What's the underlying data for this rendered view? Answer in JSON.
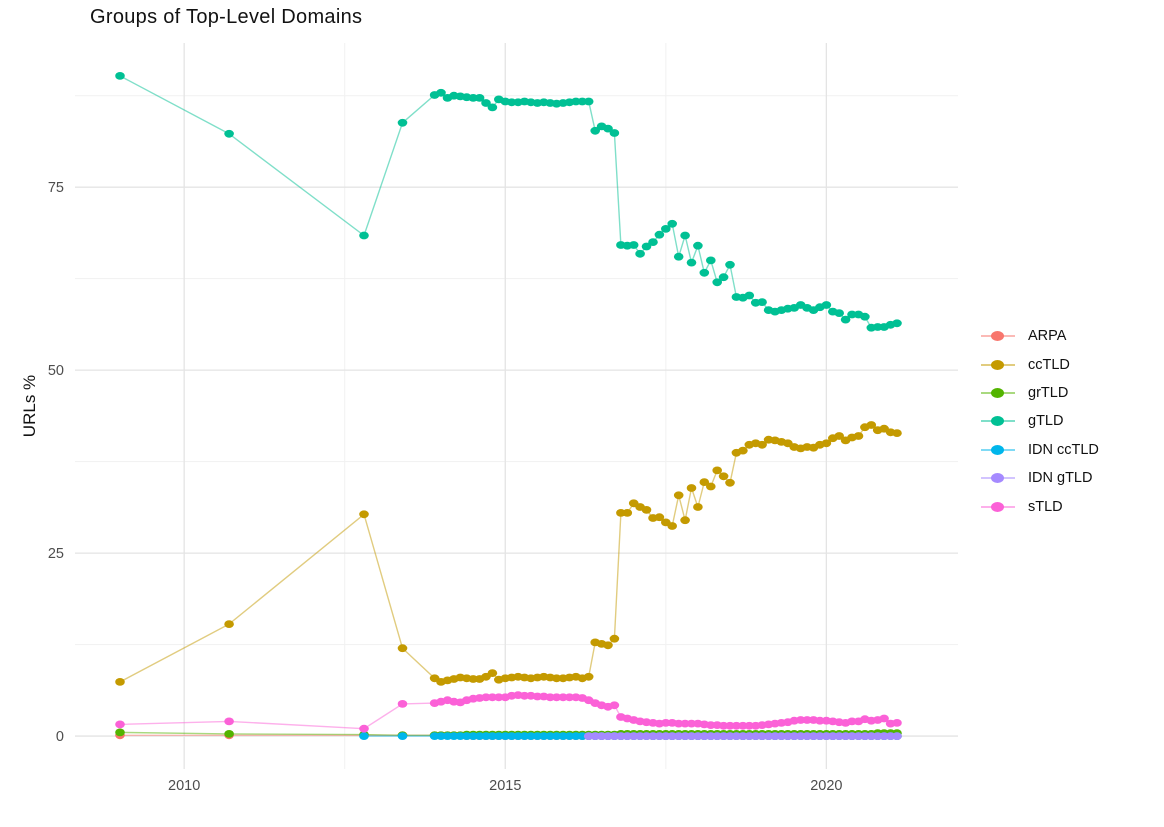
{
  "chart_data": {
    "type": "line",
    "title": "Groups of Top-Level Domains",
    "ylabel": "URLs %",
    "xlabel": "",
    "grid": "major+minor",
    "legend_position": "right",
    "xlim": [
      2008.3,
      2022.05
    ],
    "ylim": [
      -4.5,
      94.7
    ],
    "x_major_ticks": [
      2010,
      2015,
      2020
    ],
    "x_tick_labels": [
      "2010",
      "2015",
      "2020"
    ],
    "x_minor_ticks": [
      2012.5,
      2017.5
    ],
    "y_major_ticks": [
      0,
      25,
      50,
      75
    ],
    "y_tick_labels": [
      "0",
      "25",
      "50",
      "75"
    ],
    "y_minor_ticks": [
      12.5,
      37.5,
      62.5,
      87.5
    ],
    "major_grid_color": "#e4e4e4",
    "minor_grid_color": "#f1f1f1",
    "x": [
      2009.0,
      2010.7,
      2012.8,
      2013.4,
      2013.9,
      2014.0,
      2014.1,
      2014.2,
      2014.3,
      2014.4,
      2014.5,
      2014.6,
      2014.7,
      2014.8,
      2014.9,
      2015.0,
      2015.1,
      2015.2,
      2015.3,
      2015.4,
      2015.5,
      2015.6,
      2015.7,
      2015.8,
      2015.9,
      2016.0,
      2016.1,
      2016.2,
      2016.3,
      2016.4,
      2016.5,
      2016.6,
      2016.7,
      2016.8,
      2016.9,
      2017.0,
      2017.1,
      2017.2,
      2017.3,
      2017.4,
      2017.5,
      2017.6,
      2017.7,
      2017.8,
      2017.9,
      2018.0,
      2018.1,
      2018.2,
      2018.3,
      2018.4,
      2018.5,
      2018.6,
      2018.7,
      2018.8,
      2018.9,
      2019.0,
      2019.1,
      2019.2,
      2019.3,
      2019.4,
      2019.5,
      2019.6,
      2019.7,
      2019.8,
      2019.9,
      2020.0,
      2020.1,
      2020.2,
      2020.3,
      2020.4,
      2020.5,
      2020.6,
      2020.7,
      2020.8,
      2020.9,
      2021.0,
      2021.1
    ],
    "series": [
      {
        "name": "ARPA",
        "color": "#F8766D",
        "y": [
          0.1,
          0.1,
          0.1,
          0.1,
          0.1,
          0.1,
          0.1,
          0.1,
          0.1,
          0.0,
          0.0,
          0.0,
          0.0,
          0.0,
          0.0,
          0.0,
          0.0,
          0.0,
          0.0,
          0.0,
          0.0,
          0.0,
          0.0,
          0.0,
          0.0,
          0.0,
          0.0,
          0.0,
          0.0,
          0.0,
          0.0,
          0.0,
          0.0,
          0.0,
          0.0,
          0.0,
          0.0,
          0.0,
          0.0,
          0.0,
          0.0,
          0.0,
          0.0,
          0.0,
          0.0,
          0.0,
          0.0,
          0.0,
          0.0,
          0.0,
          0.0,
          0.0,
          0.0,
          0.0,
          0.0,
          0.0,
          0.0,
          0.0,
          0.0,
          0.0,
          0.0,
          0.0,
          0.0,
          0.0,
          0.0,
          0.0,
          0.0,
          0.0,
          0.0,
          0.0,
          0.0,
          0.0,
          0.0,
          0.0,
          0.0,
          0.0,
          0.0
        ]
      },
      {
        "name": "ccTLD",
        "color": "#C49A00",
        "y": [
          7.4,
          15.3,
          30.3,
          12.0,
          7.9,
          7.4,
          7.6,
          7.8,
          8.0,
          7.9,
          7.8,
          7.8,
          8.1,
          8.6,
          7.7,
          7.9,
          8.0,
          8.1,
          8.0,
          7.9,
          8.0,
          8.1,
          8.0,
          7.9,
          7.9,
          8.0,
          8.1,
          7.9,
          8.1,
          12.8,
          12.6,
          12.4,
          13.3,
          30.5,
          30.5,
          31.8,
          31.3,
          30.9,
          29.8,
          29.9,
          29.2,
          28.7,
          32.9,
          29.5,
          33.9,
          31.3,
          34.7,
          34.1,
          36.3,
          35.5,
          34.6,
          38.7,
          39.0,
          39.8,
          40.0,
          39.8,
          40.5,
          40.4,
          40.2,
          40.0,
          39.5,
          39.3,
          39.5,
          39.4,
          39.8,
          40.0,
          40.7,
          41.0,
          40.4,
          40.8,
          41.0,
          42.2,
          42.5,
          41.8,
          42.0,
          41.5,
          41.4
        ]
      },
      {
        "name": "grTLD",
        "color": "#53B400",
        "y": [
          0.5,
          0.3,
          0.2,
          0.1,
          0.1,
          0.1,
          0.1,
          0.1,
          0.1,
          0.2,
          0.2,
          0.2,
          0.2,
          0.2,
          0.2,
          0.2,
          0.2,
          0.2,
          0.2,
          0.2,
          0.2,
          0.2,
          0.2,
          0.2,
          0.2,
          0.2,
          0.2,
          0.2,
          0.2,
          0.2,
          0.2,
          0.2,
          0.2,
          0.3,
          0.3,
          0.3,
          0.3,
          0.3,
          0.3,
          0.3,
          0.3,
          0.3,
          0.3,
          0.3,
          0.3,
          0.3,
          0.3,
          0.3,
          0.3,
          0.3,
          0.3,
          0.3,
          0.3,
          0.3,
          0.3,
          0.3,
          0.3,
          0.3,
          0.3,
          0.3,
          0.3,
          0.3,
          0.3,
          0.3,
          0.3,
          0.3,
          0.3,
          0.3,
          0.3,
          0.3,
          0.3,
          0.3,
          0.3,
          0.4,
          0.4,
          0.4,
          0.4
        ]
      },
      {
        "name": "gTLD",
        "color": "#00C094",
        "y": [
          90.2,
          82.3,
          68.4,
          83.8,
          87.6,
          87.9,
          87.2,
          87.5,
          87.4,
          87.3,
          87.2,
          87.2,
          86.5,
          85.9,
          87.0,
          86.7,
          86.6,
          86.6,
          86.7,
          86.6,
          86.5,
          86.6,
          86.5,
          86.4,
          86.5,
          86.6,
          86.7,
          86.7,
          86.7,
          82.7,
          83.3,
          83.0,
          82.4,
          67.1,
          67.0,
          67.1,
          65.9,
          66.9,
          67.5,
          68.5,
          69.3,
          70.0,
          65.5,
          68.4,
          64.7,
          67.0,
          63.3,
          65.0,
          62.0,
          62.7,
          64.4,
          60.0,
          59.9,
          60.2,
          59.2,
          59.3,
          58.2,
          58.0,
          58.2,
          58.4,
          58.5,
          58.9,
          58.5,
          58.2,
          58.6,
          58.9,
          58.0,
          57.8,
          56.9,
          57.6,
          57.6,
          57.3,
          55.8,
          55.9,
          55.9,
          56.2,
          56.4
        ]
      },
      {
        "name": "IDN ccTLD",
        "color": "#00B6EB",
        "y": [
          null,
          null,
          0.0,
          0.0,
          0.0,
          0.0,
          0.0,
          0.0,
          0.0,
          0.0,
          0.0,
          0.0,
          0.0,
          0.0,
          0.0,
          0.0,
          0.0,
          0.0,
          0.0,
          0.0,
          0.0,
          0.0,
          0.0,
          0.0,
          0.0,
          0.0,
          0.0,
          0.0,
          0.0,
          0.0,
          0.0,
          0.0,
          0.0,
          0.0,
          0.0,
          0.0,
          0.0,
          0.0,
          0.0,
          0.0,
          0.0,
          0.0,
          0.0,
          0.0,
          0.0,
          0.0,
          0.0,
          0.0,
          0.0,
          0.0,
          0.0,
          0.0,
          0.0,
          0.0,
          0.0,
          0.0,
          0.0,
          0.0,
          0.0,
          0.0,
          0.0,
          0.0,
          0.0,
          0.0,
          0.0,
          0.0,
          0.0,
          0.0,
          0.0,
          0.0,
          0.0,
          0.0,
          0.0,
          0.0,
          0.0,
          0.0,
          0.0
        ]
      },
      {
        "name": "IDN gTLD",
        "color": "#A58AFF",
        "y": [
          null,
          null,
          null,
          null,
          null,
          null,
          null,
          null,
          null,
          null,
          null,
          null,
          null,
          null,
          null,
          null,
          null,
          null,
          null,
          null,
          null,
          null,
          null,
          null,
          null,
          null,
          null,
          null,
          0.0,
          0.0,
          0.0,
          0.0,
          0.0,
          0.0,
          0.0,
          0.0,
          0.0,
          0.0,
          0.0,
          0.0,
          0.0,
          0.0,
          0.0,
          0.0,
          0.0,
          0.0,
          0.0,
          0.0,
          0.0,
          0.0,
          0.0,
          0.0,
          0.0,
          0.0,
          0.0,
          0.0,
          0.0,
          0.0,
          0.0,
          0.0,
          0.0,
          0.0,
          0.0,
          0.0,
          0.0,
          0.0,
          0.0,
          0.0,
          0.0,
          0.0,
          0.0,
          0.0,
          0.0,
          0.0,
          0.0,
          0.0,
          0.0
        ]
      },
      {
        "name": "sTLD",
        "color": "#FB61D7",
        "y": [
          1.6,
          2.0,
          1.0,
          4.4,
          4.5,
          4.7,
          4.9,
          4.7,
          4.6,
          4.9,
          5.1,
          5.2,
          5.3,
          5.3,
          5.3,
          5.3,
          5.5,
          5.6,
          5.5,
          5.5,
          5.4,
          5.4,
          5.3,
          5.3,
          5.3,
          5.3,
          5.3,
          5.2,
          4.9,
          4.5,
          4.2,
          4.0,
          4.2,
          2.6,
          2.4,
          2.2,
          2.0,
          1.9,
          1.8,
          1.7,
          1.8,
          1.8,
          1.7,
          1.7,
          1.7,
          1.7,
          1.6,
          1.5,
          1.5,
          1.4,
          1.4,
          1.4,
          1.4,
          1.4,
          1.4,
          1.5,
          1.6,
          1.7,
          1.8,
          1.9,
          2.1,
          2.2,
          2.2,
          2.2,
          2.1,
          2.1,
          2.0,
          1.9,
          1.8,
          2.0,
          2.0,
          2.3,
          2.1,
          2.2,
          2.4,
          1.7,
          1.8
        ]
      }
    ]
  }
}
